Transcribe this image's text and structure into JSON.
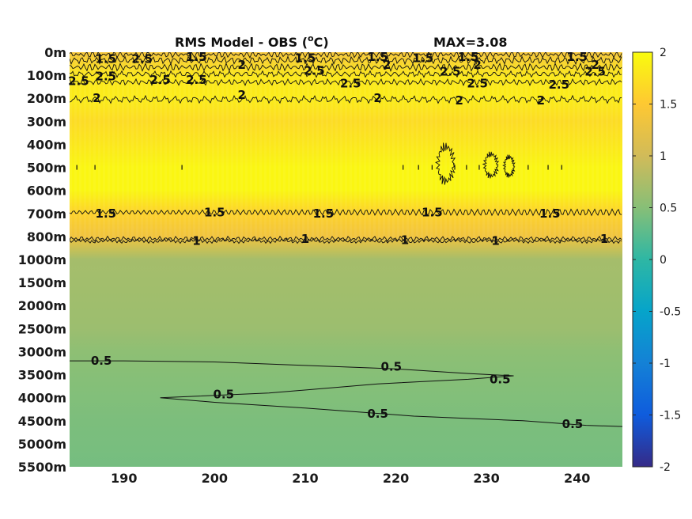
{
  "chart_data": {
    "type": "heatmap",
    "title": "RMS Model - OBS (",
    "title_unit_sup": "o",
    "title_unit_tail": "C)",
    "max_label": "MAX=3.08",
    "x": {
      "ticks": [
        190,
        200,
        210,
        220,
        230,
        240
      ],
      "range": [
        184,
        245
      ]
    },
    "y": {
      "levels": [
        "0m",
        "100m",
        "200m",
        "300m",
        "400m",
        "500m",
        "600m",
        "700m",
        "800m",
        "1000m",
        "1500m",
        "2000m",
        "2500m",
        "3000m",
        "3500m",
        "4000m",
        "4500m",
        "5000m",
        "5500m"
      ]
    },
    "colorbar": {
      "range": [
        -2,
        2
      ],
      "ticks": [
        "2",
        "1.5",
        "1",
        "0.5",
        "0",
        "-0.5",
        "-1",
        "-1.5",
        "-2"
      ],
      "colors": [
        "#352a87",
        "#0f5cdd",
        "#1481d6",
        "#06a4ca",
        "#2eb7a4",
        "#87bf77",
        "#d1bb59",
        "#fec832",
        "#f9fb0e"
      ]
    },
    "field_profile": [
      {
        "level": "0m",
        "value": 1.4
      },
      {
        "level": "100m",
        "value": 1.8
      },
      {
        "level": "200m",
        "value": 1.85
      },
      {
        "level": "300m",
        "value": 1.7
      },
      {
        "level": "400m",
        "value": 1.8
      },
      {
        "level": "500m",
        "value": 1.95
      },
      {
        "level": "600m",
        "value": 1.95
      },
      {
        "level": "700m",
        "value": 1.6
      },
      {
        "level": "800m",
        "value": 1.35
      },
      {
        "level": "1000m",
        "value": 0.7
      },
      {
        "level": "1500m",
        "value": 0.68
      },
      {
        "level": "2000m",
        "value": 0.66
      },
      {
        "level": "2500m",
        "value": 0.64
      },
      {
        "level": "3000m",
        "value": 0.55
      },
      {
        "level": "3500m",
        "value": 0.5
      },
      {
        "level": "4000m",
        "value": 0.47
      },
      {
        "level": "4500m",
        "value": 0.44
      },
      {
        "level": "5000m",
        "value": 0.42
      },
      {
        "level": "5500m",
        "value": 0.4
      }
    ],
    "contour_labels": [
      {
        "text": "1.5",
        "x": 188,
        "level": 0.3
      },
      {
        "text": "2.5",
        "x": 192,
        "level": 0.3
      },
      {
        "text": "1.5",
        "x": 198,
        "level": 0.2
      },
      {
        "text": "2",
        "x": 203,
        "level": 0.55
      },
      {
        "text": "1.5",
        "x": 210,
        "level": 0.25
      },
      {
        "text": "2.5",
        "x": 211,
        "level": 0.8
      },
      {
        "text": "1.5",
        "x": 218,
        "level": 0.2
      },
      {
        "text": "2",
        "x": 219,
        "level": 0.55
      },
      {
        "text": "1.5",
        "x": 223,
        "level": 0.25
      },
      {
        "text": "2.5",
        "x": 226,
        "level": 0.85
      },
      {
        "text": "1.5",
        "x": 228,
        "level": 0.2
      },
      {
        "text": "2",
        "x": 229,
        "level": 0.55
      },
      {
        "text": "1.5",
        "x": 240,
        "level": 0.2
      },
      {
        "text": "2",
        "x": 242,
        "level": 0.55
      },
      {
        "text": "2.5",
        "x": 242,
        "level": 0.85
      },
      {
        "text": "2.5",
        "x": 185,
        "level": 1.25
      },
      {
        "text": "2.5",
        "x": 188,
        "level": 1.05
      },
      {
        "text": "2.5",
        "x": 194,
        "level": 1.2
      },
      {
        "text": "2.5",
        "x": 198,
        "level": 1.2
      },
      {
        "text": "2.5",
        "x": 215,
        "level": 1.35
      },
      {
        "text": "2.5",
        "x": 229,
        "level": 1.35
      },
      {
        "text": "2.5",
        "x": 238,
        "level": 1.4
      },
      {
        "text": "2",
        "x": 187,
        "level": 2.0
      },
      {
        "text": "2",
        "x": 203,
        "level": 1.85
      },
      {
        "text": "2",
        "x": 218,
        "level": 2.0
      },
      {
        "text": "2",
        "x": 227,
        "level": 2.1
      },
      {
        "text": "2",
        "x": 236,
        "level": 2.1
      },
      {
        "text": "1.5",
        "x": 188,
        "level": 7.0
      },
      {
        "text": "1.5",
        "x": 200,
        "level": 6.95
      },
      {
        "text": "1.5",
        "x": 212,
        "level": 7.0
      },
      {
        "text": "1.5",
        "x": 224,
        "level": 6.95
      },
      {
        "text": "1.5",
        "x": 237,
        "level": 7.0
      },
      {
        "text": "1",
        "x": 198,
        "level": 8.2
      },
      {
        "text": "1",
        "x": 210,
        "level": 8.1
      },
      {
        "text": "1",
        "x": 221,
        "level": 8.15
      },
      {
        "text": "1",
        "x": 231,
        "level": 8.2
      },
      {
        "text": "1",
        "x": 243,
        "level": 8.1
      },
      {
        "text": "0.5",
        "x": 187.5,
        "level": 13.4
      },
      {
        "text": "0.5",
        "x": 219.5,
        "level": 13.65
      },
      {
        "text": "0.5",
        "x": 231.5,
        "level": 14.2
      },
      {
        "text": "0.5",
        "x": 201,
        "level": 14.85
      },
      {
        "text": "0.5",
        "x": 218,
        "level": 15.7
      },
      {
        "text": "0.5",
        "x": 239.5,
        "level": 16.15
      }
    ],
    "contour_path_05": [
      {
        "x": 184,
        "level": 13.4
      },
      {
        "x": 190,
        "level": 13.4
      },
      {
        "x": 200,
        "level": 13.45
      },
      {
        "x": 210,
        "level": 13.6
      },
      {
        "x": 220,
        "level": 13.75
      },
      {
        "x": 228,
        "level": 13.95
      },
      {
        "x": 233,
        "level": 14.05
      },
      {
        "x": 228,
        "level": 14.2
      },
      {
        "x": 218,
        "level": 14.4
      },
      {
        "x": 206,
        "level": 14.8
      },
      {
        "x": 194,
        "level": 15.0
      },
      {
        "x": 200,
        "level": 15.2
      },
      {
        "x": 210,
        "level": 15.45
      },
      {
        "x": 222,
        "level": 15.8
      },
      {
        "x": 234,
        "level": 16.0
      },
      {
        "x": 241,
        "level": 16.2
      },
      {
        "x": 245,
        "level": 16.25
      }
    ]
  }
}
